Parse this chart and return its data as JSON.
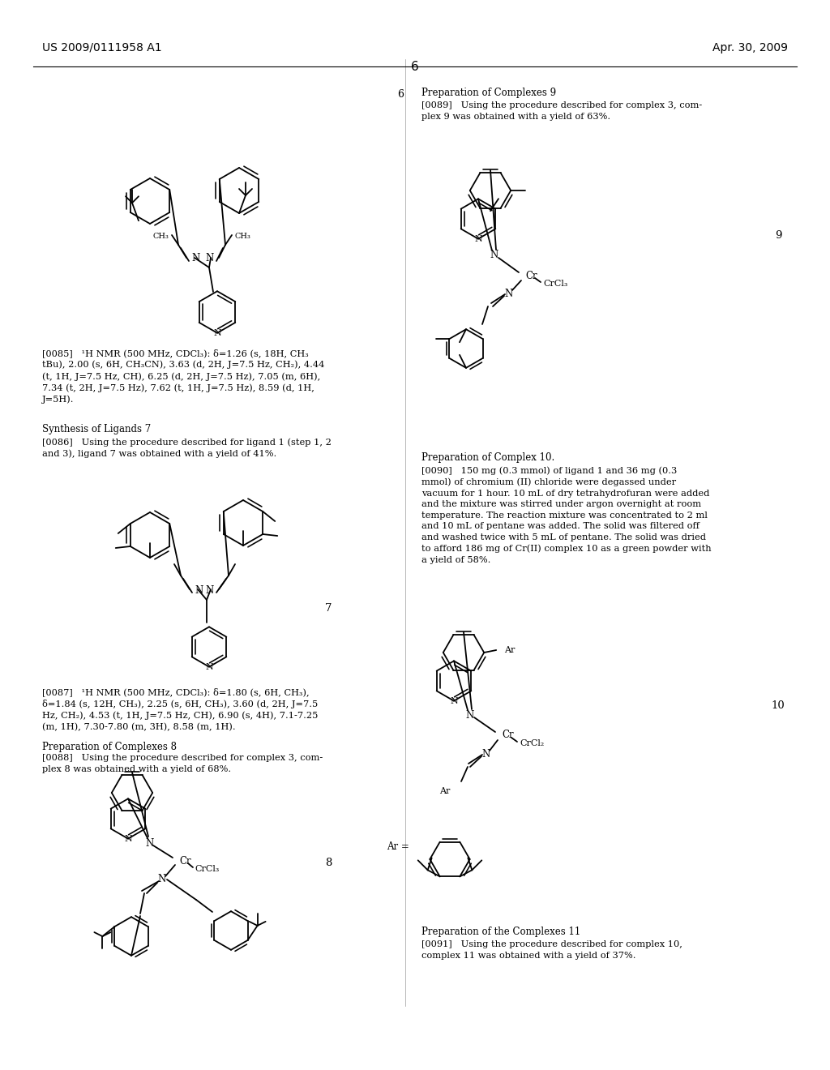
{
  "background_color": "#ffffff",
  "page_width": 10.24,
  "page_height": 13.2,
  "header_left": "US 2009/0111958 A1",
  "header_right": "Apr. 30, 2009",
  "page_number": "6"
}
